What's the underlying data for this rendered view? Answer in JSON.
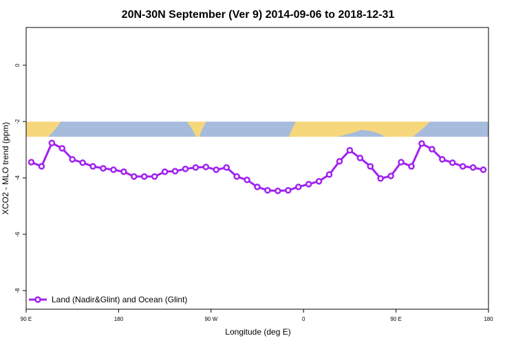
{
  "chart_data": {
    "type": "line",
    "title": "20N-30N September (Ver 9)   2014-09-06 to 2018-12-31",
    "x_label": "Longitude (deg E)",
    "y_label": "XCO2 - MLO trend (ppm)",
    "xlim": [
      90,
      540
    ],
    "xticks": [
      {
        "value": 90,
        "label": "90 E"
      },
      {
        "value": 180,
        "label": "180"
      },
      {
        "value": 270,
        "label": "90 W"
      },
      {
        "value": 360,
        "label": "0"
      },
      {
        "value": 450,
        "label": "90 E"
      },
      {
        "value": 540,
        "label": "180"
      }
    ],
    "ylim": [
      -8.66,
      1.34
    ],
    "yticks": [
      0,
      -2,
      -4,
      -6,
      -8
    ],
    "legend": "bottomleft",
    "x": [
      95,
      105,
      115,
      125,
      135,
      145,
      155,
      165,
      175,
      185,
      195,
      205,
      215,
      225,
      235,
      245,
      255,
      265,
      275,
      285,
      295,
      305,
      315,
      325,
      335,
      345,
      355,
      365,
      375,
      385,
      395,
      405,
      415,
      425,
      435,
      445,
      455,
      465,
      475,
      485,
      495,
      505,
      515,
      525,
      535
    ],
    "series": [
      {
        "name": "Land (Nadir&Glint) and Ocean (Glint)",
        "color": "#a020f0",
        "values": [
          -3.44,
          -3.59,
          -2.76,
          -2.95,
          -3.34,
          -3.46,
          -3.59,
          -3.66,
          -3.71,
          -3.78,
          -3.95,
          -3.95,
          -3.95,
          -3.78,
          -3.76,
          -3.68,
          -3.63,
          -3.61,
          -3.71,
          -3.63,
          -3.95,
          -4.07,
          -4.32,
          -4.44,
          -4.46,
          -4.44,
          -4.32,
          -4.22,
          -4.12,
          -3.88,
          -3.41,
          -3.02,
          -3.29,
          -3.59,
          -4.02,
          -3.93,
          -3.44,
          -3.59,
          -2.78,
          -2.98,
          -3.34,
          -3.46,
          -3.59,
          -3.63,
          -3.71
        ]
      }
    ]
  }
}
